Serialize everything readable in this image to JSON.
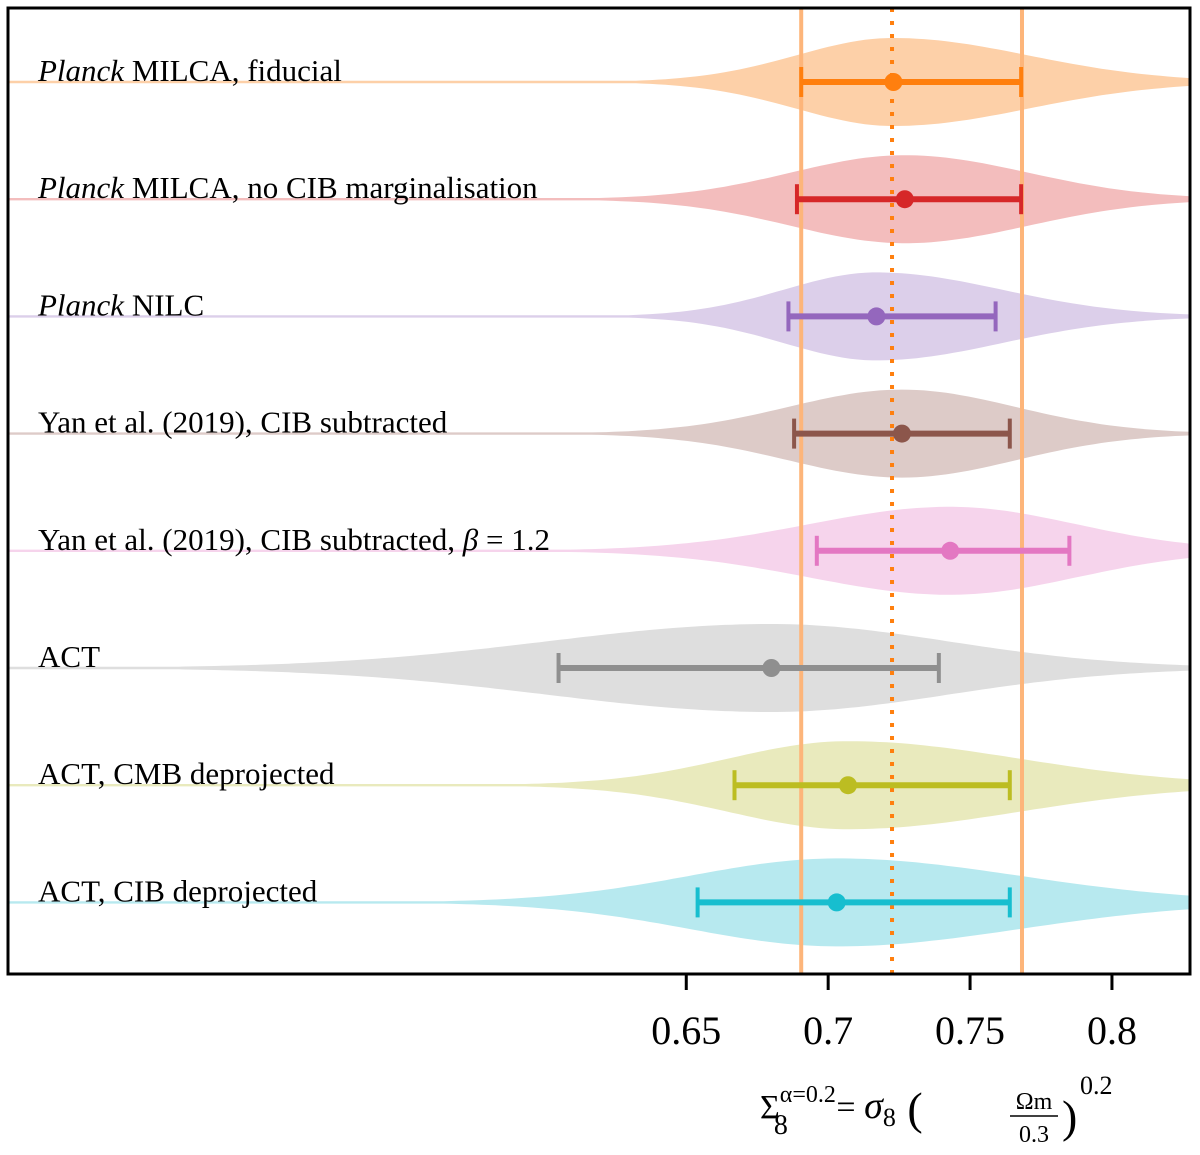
{
  "chart_data": {
    "type": "violin-errorbar",
    "title": "",
    "xlabel": {
      "base": "Σ",
      "sub": "8",
      "sup": "α=0.2",
      "rhs": "= σ",
      "rhs_sub": "8",
      "frac_num": "Ω",
      "frac_num_sub": "m",
      "frac_den": "0.3",
      "exponent": "0.2"
    },
    "xlim": [
      0.411,
      0.8275
    ],
    "xticks": [
      0.65,
      0.7,
      0.75,
      0.8
    ],
    "xtick_labels": [
      "0.65",
      "0.7",
      "0.75",
      "0.8"
    ],
    "grid": false,
    "reference": {
      "center": 0.7225,
      "lower": 0.6905,
      "upper": 0.7683,
      "color": "#ff7f0e",
      "band_color": "#fdb57a"
    },
    "series": [
      {
        "name": "Planck MILCA, fiducial",
        "italic_prefix": "Planck",
        "rest": " MILCA, fiducial",
        "center": 0.723,
        "lower": 0.6905,
        "upper": 0.768,
        "color": "#ff7f0e",
        "fill": "#fdd0a8"
      },
      {
        "name": "Planck MILCA, no CIB marginalisation",
        "italic_prefix": "Planck",
        "rest": " MILCA, no CIB marginalisation",
        "center": 0.727,
        "lower": 0.689,
        "upper": 0.768,
        "color": "#d62728",
        "fill": "#f3bdbd"
      },
      {
        "name": "Planck NILC",
        "italic_prefix": "Planck",
        "rest": " NILC",
        "center": 0.717,
        "lower": 0.686,
        "upper": 0.759,
        "color": "#9467bd",
        "fill": "#dccfea"
      },
      {
        "name": "Yan et al. (2019), CIB subtracted",
        "italic_prefix": "",
        "rest": "Yan et al. (2019), CIB subtracted",
        "center": 0.726,
        "lower": 0.688,
        "upper": 0.764,
        "color": "#8c564b",
        "fill": "#ddcbc8"
      },
      {
        "name": "Yan et al. (2019), CIB subtracted, β = 1.2",
        "italic_prefix": "",
        "rest": "Yan et al. (2019), CIB subtracted, ",
        "beta": "β",
        "beta_rest": " = 1.2",
        "center": 0.743,
        "lower": 0.696,
        "upper": 0.785,
        "color": "#e377c2",
        "fill": "#f6d4ec"
      },
      {
        "name": "ACT",
        "italic_prefix": "",
        "rest": "ACT",
        "center": 0.68,
        "lower": 0.605,
        "upper": 0.739,
        "color": "#8f8f8f",
        "fill": "#dedede"
      },
      {
        "name": "ACT, CMB deprojected",
        "italic_prefix": "",
        "rest": "ACT, CMB deprojected",
        "center": 0.707,
        "lower": 0.667,
        "upper": 0.764,
        "color": "#bcbd22",
        "fill": "#e9eabd"
      },
      {
        "name": "ACT, CIB deprojected",
        "italic_prefix": "",
        "rest": "ACT, CIB deprojected",
        "center": 0.703,
        "lower": 0.654,
        "upper": 0.764,
        "color": "#17becf",
        "fill": "#b7e9ef"
      }
    ]
  }
}
